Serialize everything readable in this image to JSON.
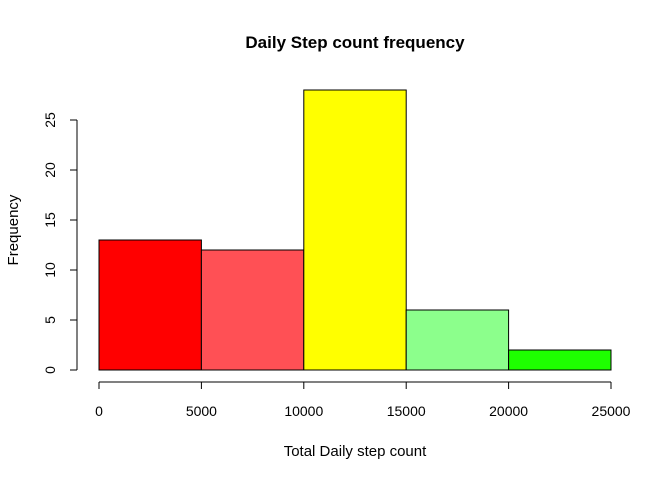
{
  "chart_data": {
    "type": "bar",
    "title": "Daily Step count frequency",
    "xlabel": "Total Daily step count",
    "ylabel": "Frequency",
    "bins": [
      {
        "from": 0,
        "to": 5000,
        "count": 13,
        "color": "#ff0000"
      },
      {
        "from": 5000,
        "to": 10000,
        "count": 12,
        "color": "#ff5055"
      },
      {
        "from": 10000,
        "to": 15000,
        "count": 28,
        "color": "#ffff00"
      },
      {
        "from": 15000,
        "to": 20000,
        "count": 6,
        "color": "#8cff8c"
      },
      {
        "from": 20000,
        "to": 25000,
        "count": 2,
        "color": "#1eff00"
      }
    ],
    "x_ticks": [
      0,
      5000,
      10000,
      15000,
      20000,
      25000
    ],
    "x_tick_labels": [
      "0",
      "5000",
      "10000",
      "15000",
      "20000",
      "25000"
    ],
    "y_ticks": [
      0,
      5,
      10,
      15,
      20,
      25
    ],
    "y_tick_labels": [
      "0",
      "5",
      "10",
      "15",
      "20",
      "25"
    ],
    "xlim": [
      0,
      25000
    ],
    "ylim": [
      0,
      28
    ],
    "grid": false,
    "legend": "none"
  }
}
